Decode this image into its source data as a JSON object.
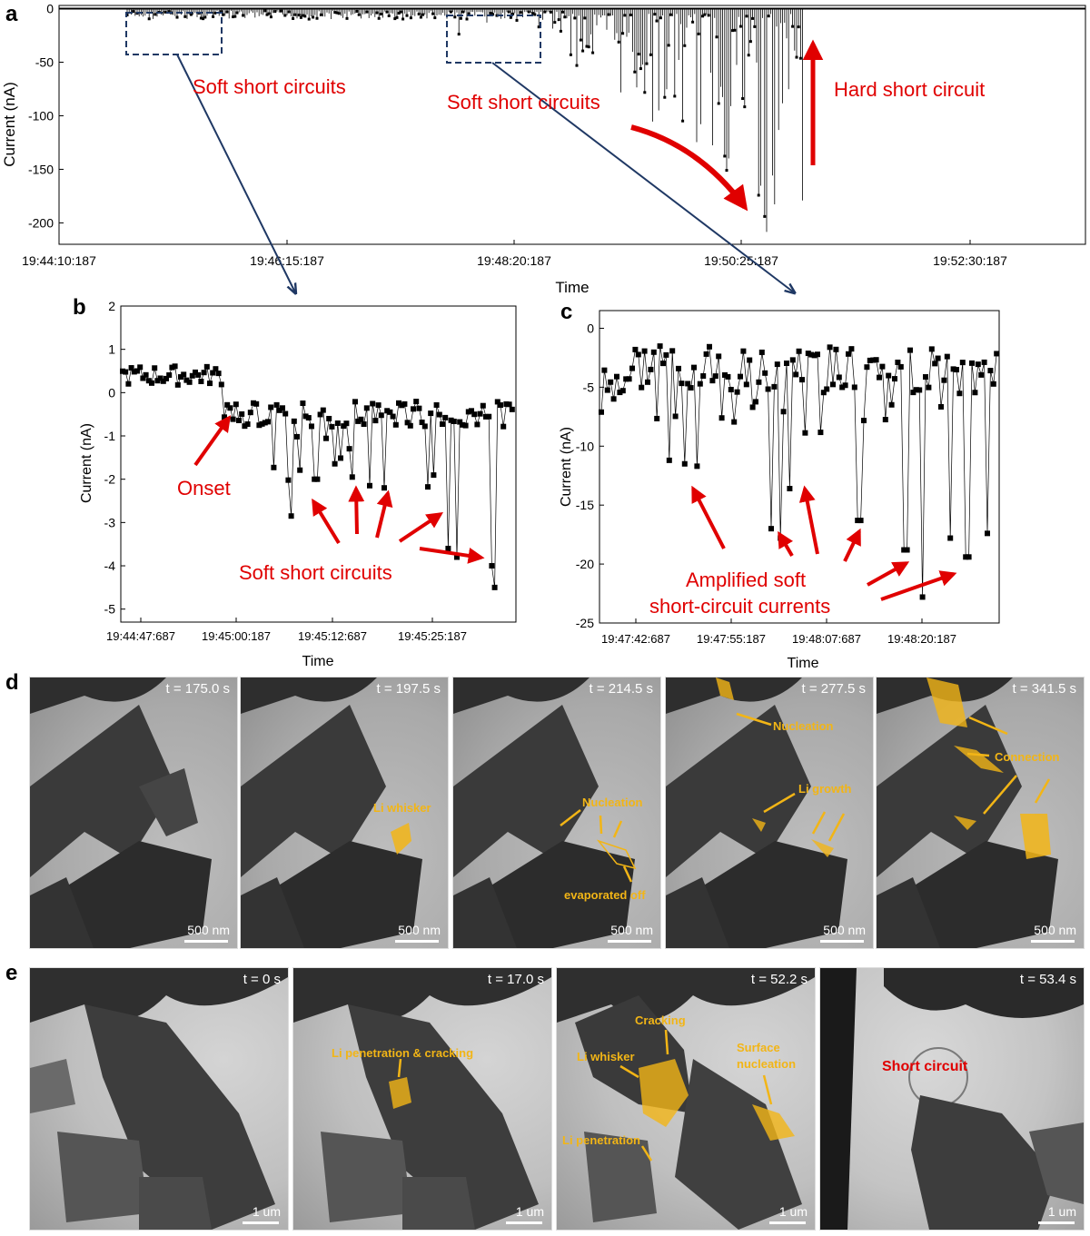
{
  "panel_letters": {
    "a": "a",
    "b": "b",
    "c": "c",
    "d": "d",
    "e": "e"
  },
  "chart_data": [
    {
      "id": "a",
      "type": "scatter",
      "xlabel": "Time",
      "ylabel": "Current (nA)",
      "x_ticks": [
        "19:44:10:187",
        "19:46:15:187",
        "19:48:20:187",
        "19:50:25:187",
        "19:52:30:187"
      ],
      "y_ticks": [
        "0",
        "-50",
        "-100",
        "-150",
        "-200"
      ],
      "ylim": [
        -220,
        3
      ],
      "annotations": [
        "Soft short circuits",
        "Soft short circuits",
        "Hard short circuit"
      ]
    },
    {
      "id": "b",
      "type": "scatter",
      "xlabel": "Time",
      "ylabel": "Current (nA)",
      "x_ticks": [
        "19:44:47:687",
        "19:45:00:187",
        "19:45:12:687",
        "19:45:25:187"
      ],
      "y_ticks": [
        "2",
        "1",
        "0",
        "-1",
        "-2",
        "-3",
        "-4",
        "-5"
      ],
      "ylim": [
        -5.3,
        2
      ],
      "annotations": [
        "Onset",
        "Soft short circuits"
      ]
    },
    {
      "id": "c",
      "type": "scatter",
      "xlabel": "Time",
      "ylabel": "Current (nA)",
      "x_ticks": [
        "19:47:42:687",
        "19:47:55:187",
        "19:48:07:687",
        "19:48:20:187"
      ],
      "y_ticks": [
        "0",
        "-5",
        "-10",
        "-15",
        "-20",
        "-25"
      ],
      "ylim": [
        -25,
        1.5
      ],
      "annotations": [
        "Amplified soft",
        "short-circuit currents"
      ]
    }
  ],
  "panel_d": {
    "frames": [
      {
        "time": "t = 175.0 s",
        "scale": "500 nm",
        "labels": []
      },
      {
        "time": "t = 197.5 s",
        "scale": "500 nm",
        "labels": [
          "Li whisker"
        ]
      },
      {
        "time": "t = 214.5 s",
        "scale": "500 nm",
        "labels": [
          "Nucleation",
          "evaporated off"
        ]
      },
      {
        "time": "t = 277.5 s",
        "scale": "500 nm",
        "labels": [
          "Nucleation",
          "Li growth"
        ]
      },
      {
        "time": "t = 341.5 s",
        "scale": "500 nm",
        "labels": [
          "Connection"
        ]
      }
    ]
  },
  "panel_e": {
    "frames": [
      {
        "time": "t = 0 s",
        "scale": "1 um",
        "labels": []
      },
      {
        "time": "t = 17.0 s",
        "scale": "1 um",
        "labels": [
          "Li penetration & cracking"
        ]
      },
      {
        "time": "t = 52.2 s",
        "scale": "1 um",
        "labels": [
          "Cracking",
          "Li whisker",
          "Surface",
          "nucleation",
          "Li penetration"
        ]
      },
      {
        "time": "t = 53.4 s",
        "scale": "1 um",
        "labels": [
          "Short circuit"
        ]
      }
    ]
  },
  "colors": {
    "annotation_red": "#e00000",
    "highlight_yellow": "#f2b516",
    "zoom_box": "#1f3864"
  }
}
